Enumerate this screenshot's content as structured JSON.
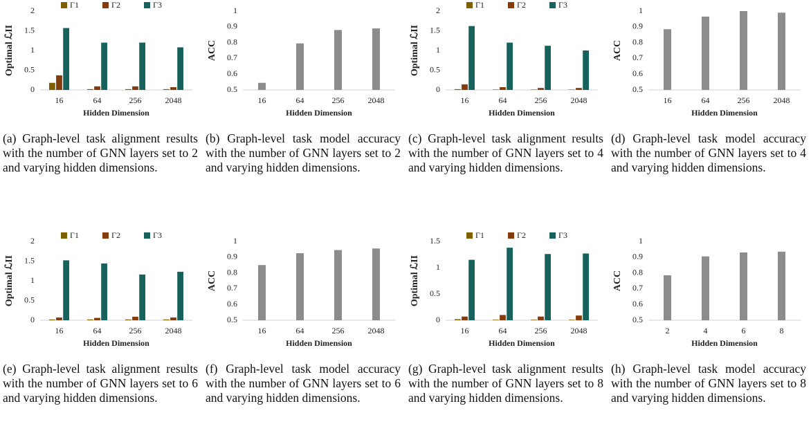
{
  "chart_data": [
    {
      "type": "bar",
      "ylabel": "Optimal ℒII",
      "xlabel": "Hidden Dimension",
      "categories": [
        "16",
        "64",
        "256",
        "2048"
      ],
      "ylim": [
        0,
        2
      ],
      "yticks": [
        0,
        0.5,
        1,
        1.5,
        2
      ],
      "series": [
        {
          "name": "Γ1",
          "color": "#7f6000",
          "values": [
            0.18,
            0.02,
            0.02,
            0.02
          ]
        },
        {
          "name": "Γ2",
          "color": "#843c0c",
          "values": [
            0.37,
            0.09,
            0.09,
            0.07
          ]
        },
        {
          "name": "Γ3",
          "color": "#17625c",
          "values": [
            1.57,
            1.2,
            1.2,
            1.08
          ]
        }
      ],
      "caption": "(a) Graph-level task alignment results with the number of GNN layers set to 2 and varying hidden dimensions."
    },
    {
      "type": "bar",
      "ylabel": "ACC",
      "xlabel": "Hidden Dimension",
      "categories": [
        "16",
        "64",
        "256",
        "2048"
      ],
      "ylim": [
        0.5,
        1
      ],
      "yticks": [
        0.5,
        0.6,
        0.7,
        0.8,
        0.9,
        1
      ],
      "color": "#8c8c8c",
      "values": [
        0.545,
        0.795,
        0.88,
        0.89
      ],
      "caption": "(b) Graph-level task model accuracy with the number of GNN layers set to 2 and varying hidden dimensions."
    },
    {
      "type": "bar",
      "ylabel": "Optimal ℒII",
      "xlabel": "Hidden Dimension",
      "categories": [
        "16",
        "64",
        "256",
        "2048"
      ],
      "ylim": [
        0,
        2
      ],
      "yticks": [
        0,
        0.5,
        1,
        1.5,
        2
      ],
      "series": [
        {
          "name": "Γ1",
          "color": "#7f6000",
          "values": [
            0.02,
            0.01,
            0.01,
            0.01
          ]
        },
        {
          "name": "Γ2",
          "color": "#843c0c",
          "values": [
            0.14,
            0.07,
            0.05,
            0.05
          ]
        },
        {
          "name": "Γ3",
          "color": "#17625c",
          "values": [
            1.62,
            1.2,
            1.12,
            1.0
          ]
        }
      ],
      "caption": "(c) Graph-level task alignment results with the number of GNN layers set to 4 and varying hidden dimensions."
    },
    {
      "type": "bar",
      "ylabel": "ACC",
      "xlabel": "Hidden Dimension",
      "categories": [
        "16",
        "64",
        "256",
        "2048"
      ],
      "ylim": [
        0.5,
        1
      ],
      "yticks": [
        0.5,
        0.6,
        0.7,
        0.8,
        0.9,
        1
      ],
      "color": "#8c8c8c",
      "values": [
        0.885,
        0.965,
        1.0,
        0.99
      ],
      "caption": "(d) Graph-level task model accuracy with the number of GNN layers set to 4 and varying hidden dimensions."
    },
    {
      "type": "bar",
      "ylabel": "Optimal ℒII",
      "xlabel": "Hidden Dimension",
      "categories": [
        "16",
        "64",
        "256",
        "2048"
      ],
      "ylim": [
        0,
        2
      ],
      "yticks": [
        0,
        0.5,
        1,
        1.5,
        2
      ],
      "series": [
        {
          "name": "Γ1",
          "color": "#7f6000",
          "values": [
            0.02,
            0.02,
            0.02,
            0.02
          ]
        },
        {
          "name": "Γ2",
          "color": "#843c0c",
          "values": [
            0.07,
            0.06,
            0.09,
            0.07
          ]
        },
        {
          "name": "Γ3",
          "color": "#17625c",
          "values": [
            1.52,
            1.44,
            1.16,
            1.23
          ]
        }
      ],
      "caption": "(e) Graph-level task alignment results with the number of GNN layers set to 6 and varying hidden dimensions."
    },
    {
      "type": "bar",
      "ylabel": "ACC",
      "xlabel": "Hidden Dimension",
      "categories": [
        "16",
        "64",
        "256",
        "2048"
      ],
      "ylim": [
        0.5,
        1
      ],
      "yticks": [
        0.5,
        0.6,
        0.7,
        0.8,
        0.9,
        1
      ],
      "color": "#8c8c8c",
      "values": [
        0.85,
        0.925,
        0.945,
        0.955
      ],
      "caption": "(f) Graph-level task model accuracy with the number of GNN layers set to 6 and varying hidden dimensions."
    },
    {
      "type": "bar",
      "ylabel": "Optimal ℒII",
      "xlabel": "Hidden Dimension",
      "categories": [
        "16",
        "64",
        "256",
        "2048"
      ],
      "ylim": [
        0,
        1.5
      ],
      "yticks": [
        0,
        0.5,
        1,
        1.5
      ],
      "series": [
        {
          "name": "Γ1",
          "color": "#7f6000",
          "values": [
            0.02,
            0.01,
            0.01,
            0.01
          ]
        },
        {
          "name": "Γ2",
          "color": "#843c0c",
          "values": [
            0.07,
            0.1,
            0.07,
            0.09
          ]
        },
        {
          "name": "Γ3",
          "color": "#17625c",
          "values": [
            1.15,
            1.38,
            1.26,
            1.27
          ]
        }
      ],
      "caption": "(g) Graph-level task alignment results with the number of GNN layers set to 8 and varying hidden dimensions."
    },
    {
      "type": "bar",
      "ylabel": "ACC",
      "xlabel": "Hidden Dimension",
      "categories": [
        "2",
        "4",
        "6",
        "8"
      ],
      "ylim": [
        0.5,
        1
      ],
      "yticks": [
        0.5,
        0.6,
        0.7,
        0.8,
        0.9,
        1
      ],
      "color": "#8c8c8c",
      "values": [
        0.785,
        0.905,
        0.93,
        0.935
      ],
      "caption": "(h) Graph-level task model accuracy with the number of GNN layers set to 8 and varying hidden dimensions."
    }
  ]
}
